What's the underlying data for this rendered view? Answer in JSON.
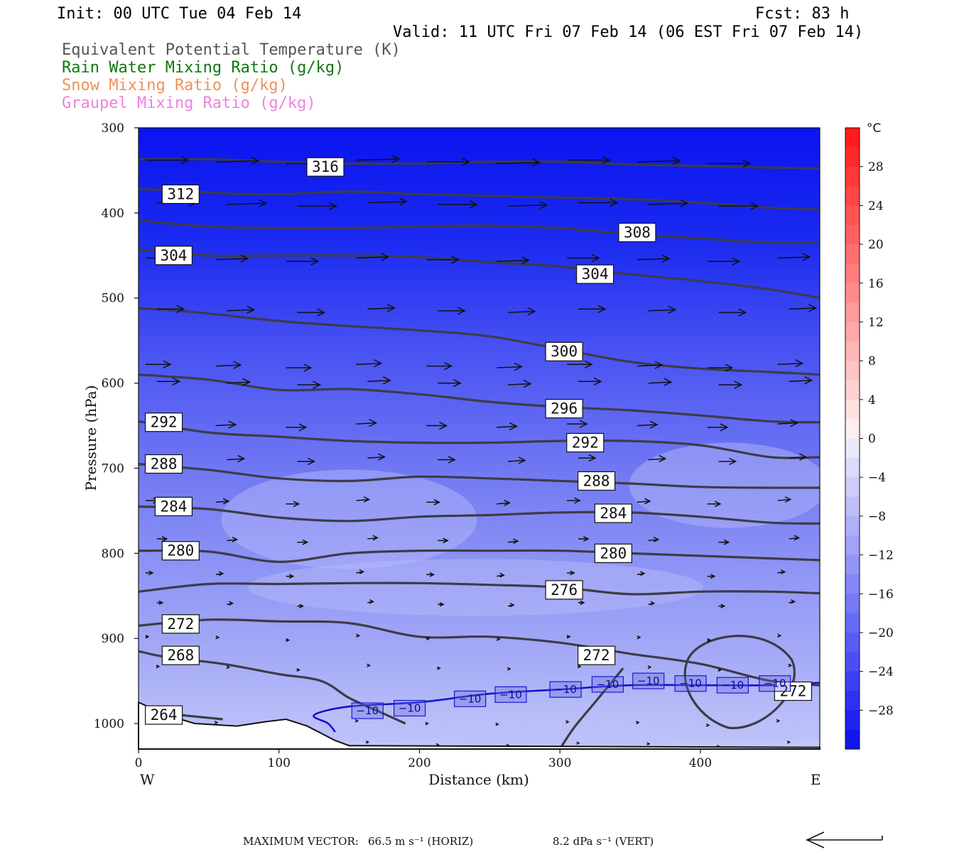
{
  "header": {
    "init": "Init: 00 UTC Tue 04 Feb 14",
    "fcst": "Fcst:   83 h",
    "valid": "Valid: 11 UTC Fri 07 Feb 14 (06 EST Fri 07 Feb 14)"
  },
  "legend_lines": [
    {
      "text": "Equivalent Potential Temperature (K)",
      "color": "#555555"
    },
    {
      "text": "Rain Water Mixing Ratio (g/kg)",
      "color": "#117711"
    },
    {
      "text": "Snow Mixing Ratio (g/kg)",
      "color": "#f0905a"
    },
    {
      "text": "Graupel Mixing Ratio (g/kg)",
      "color": "#f080e0"
    }
  ],
  "colorbar": {
    "unit": "°C",
    "labels": [
      "28",
      "24",
      "20",
      "16",
      "12",
      "8",
      "4",
      "0",
      "−4",
      "−8",
      "−12",
      "−16",
      "−20",
      "−24",
      "−28"
    ]
  },
  "footer": {
    "max_vector_label": "MAXIMUM VECTOR:",
    "horiz": "66.5 m s⁻¹ (HORIZ)",
    "vert": "8.2 dPa s⁻¹ (VERT)"
  },
  "chart_data": {
    "type": "contour",
    "title": "",
    "xlabel": "Distance (km)",
    "ylabel": "Pressure (hPa)",
    "x_ticks": [
      0,
      100,
      200,
      300,
      400
    ],
    "y_ticks": [
      300,
      400,
      500,
      600,
      700,
      800,
      900,
      1000
    ],
    "xlim": [
      0,
      485
    ],
    "ylim_hpa": [
      300,
      1030
    ],
    "y_scale": "linear",
    "x_end_labels": {
      "left": "W",
      "right": "E"
    },
    "theta_e_contours": [
      {
        "level": 316,
        "points": [
          [
            0,
            337
          ],
          [
            50,
            337
          ],
          [
            100,
            340
          ],
          [
            150,
            342
          ],
          [
            200,
            342
          ],
          [
            250,
            340
          ],
          [
            300,
            340
          ],
          [
            350,
            343
          ],
          [
            400,
            345
          ],
          [
            485,
            348
          ]
        ]
      },
      {
        "level": 312,
        "points": [
          [
            0,
            372
          ],
          [
            30,
            374
          ],
          [
            60,
            377
          ],
          [
            100,
            378
          ],
          [
            150,
            375
          ],
          [
            200,
            378
          ],
          [
            250,
            380
          ],
          [
            300,
            382
          ],
          [
            350,
            384
          ],
          [
            400,
            388
          ],
          [
            450,
            394
          ],
          [
            485,
            396
          ]
        ]
      },
      {
        "level": 308,
        "points": [
          [
            0,
            409
          ],
          [
            50,
            416
          ],
          [
            100,
            418
          ],
          [
            150,
            418
          ],
          [
            200,
            416
          ],
          [
            250,
            415
          ],
          [
            300,
            418
          ],
          [
            350,
            425
          ],
          [
            400,
            430
          ],
          [
            450,
            435
          ],
          [
            485,
            435
          ]
        ]
      },
      {
        "level": 304,
        "points": [
          [
            0,
            443
          ],
          [
            50,
            450
          ],
          [
            100,
            450
          ],
          [
            150,
            450
          ],
          [
            200,
            452
          ],
          [
            250,
            458
          ],
          [
            300,
            463
          ],
          [
            350,
            472
          ],
          [
            400,
            480
          ],
          [
            450,
            490
          ],
          [
            485,
            500
          ]
        ]
      },
      {
        "level": 300,
        "points": [
          [
            0,
            512
          ],
          [
            30,
            515
          ],
          [
            60,
            520
          ],
          [
            100,
            527
          ],
          [
            150,
            533
          ],
          [
            200,
            538
          ],
          [
            250,
            545
          ],
          [
            300,
            560
          ],
          [
            350,
            575
          ],
          [
            400,
            583
          ],
          [
            450,
            587
          ],
          [
            485,
            590
          ]
        ]
      },
      {
        "level": 296,
        "points": [
          [
            0,
            590
          ],
          [
            50,
            596
          ],
          [
            100,
            608
          ],
          [
            150,
            607
          ],
          [
            200,
            613
          ],
          [
            250,
            622
          ],
          [
            300,
            628
          ],
          [
            350,
            632
          ],
          [
            400,
            638
          ],
          [
            450,
            645
          ],
          [
            485,
            646
          ]
        ]
      },
      {
        "level": 292,
        "points": [
          [
            0,
            645
          ],
          [
            50,
            658
          ],
          [
            100,
            663
          ],
          [
            150,
            668
          ],
          [
            200,
            670
          ],
          [
            250,
            670
          ],
          [
            300,
            668
          ],
          [
            350,
            668
          ],
          [
            400,
            673
          ],
          [
            450,
            687
          ],
          [
            485,
            687
          ]
        ]
      },
      {
        "level": 288,
        "points": [
          [
            0,
            695
          ],
          [
            50,
            702
          ],
          [
            100,
            712
          ],
          [
            150,
            715
          ],
          [
            200,
            710
          ],
          [
            250,
            712
          ],
          [
            300,
            715
          ],
          [
            350,
            718
          ],
          [
            400,
            722
          ],
          [
            450,
            723
          ],
          [
            485,
            723
          ]
        ]
      },
      {
        "level": 284,
        "points": [
          [
            0,
            745
          ],
          [
            50,
            748
          ],
          [
            100,
            758
          ],
          [
            150,
            762
          ],
          [
            200,
            757
          ],
          [
            250,
            755
          ],
          [
            300,
            752
          ],
          [
            350,
            752
          ],
          [
            400,
            757
          ],
          [
            450,
            764
          ],
          [
            485,
            765
          ]
        ]
      },
      {
        "level": 280,
        "points": [
          [
            0,
            797
          ],
          [
            50,
            798
          ],
          [
            100,
            810
          ],
          [
            150,
            800
          ],
          [
            200,
            797
          ],
          [
            250,
            797
          ],
          [
            300,
            797
          ],
          [
            350,
            800
          ],
          [
            400,
            803
          ],
          [
            450,
            806
          ],
          [
            485,
            808
          ]
        ]
      },
      {
        "level": 276,
        "points": [
          [
            0,
            845
          ],
          [
            50,
            836
          ],
          [
            100,
            836
          ],
          [
            150,
            835
          ],
          [
            200,
            835
          ],
          [
            250,
            837
          ],
          [
            300,
            840
          ],
          [
            350,
            848
          ],
          [
            400,
            845
          ],
          [
            450,
            845
          ],
          [
            485,
            847
          ]
        ]
      },
      {
        "level": 272,
        "points": [
          [
            0,
            885
          ],
          [
            50,
            878
          ],
          [
            100,
            880
          ],
          [
            150,
            882
          ],
          [
            200,
            898
          ],
          [
            250,
            898
          ],
          [
            300,
            905
          ],
          [
            350,
            918
          ],
          [
            400,
            930
          ],
          [
            450,
            950
          ],
          [
            485,
            955
          ]
        ]
      },
      {
        "level": 268,
        "points": [
          [
            0,
            915
          ],
          [
            20,
            922
          ],
          [
            60,
            930
          ],
          [
            100,
            942
          ],
          [
            130,
            950
          ],
          [
            150,
            970
          ],
          [
            170,
            985
          ],
          [
            190,
            1000
          ]
        ]
      },
      {
        "level": 264,
        "points": [
          [
            0,
            985
          ],
          [
            30,
            990
          ],
          [
            60,
            995
          ]
        ]
      }
    ],
    "temperature_contour_minus10": {
      "level": -10,
      "points": [
        [
          140,
          1010
        ],
        [
          135,
          1000
        ],
        [
          125,
          990
        ],
        [
          150,
          980
        ],
        [
          200,
          975
        ],
        [
          250,
          965
        ],
        [
          300,
          960
        ],
        [
          350,
          955
        ],
        [
          400,
          955
        ],
        [
          450,
          955
        ],
        [
          485,
          952
        ]
      ]
    },
    "contour_labels": [
      {
        "text": "316",
        "x": 133,
        "p": 346
      },
      {
        "text": "312",
        "x": 30,
        "p": 378
      },
      {
        "text": "308",
        "x": 355,
        "p": 423
      },
      {
        "text": "304",
        "x": 25,
        "p": 450
      },
      {
        "text": "304",
        "x": 325,
        "p": 472
      },
      {
        "text": "300",
        "x": 303,
        "p": 563
      },
      {
        "text": "296",
        "x": 303,
        "p": 630
      },
      {
        "text": "292",
        "x": 18,
        "p": 646
      },
      {
        "text": "292",
        "x": 318,
        "p": 670
      },
      {
        "text": "288",
        "x": 18,
        "p": 695
      },
      {
        "text": "288",
        "x": 326,
        "p": 715
      },
      {
        "text": "284",
        "x": 25,
        "p": 745
      },
      {
        "text": "284",
        "x": 338,
        "p": 753
      },
      {
        "text": "280",
        "x": 30,
        "p": 797
      },
      {
        "text": "280",
        "x": 338,
        "p": 800
      },
      {
        "text": "276",
        "x": 303,
        "p": 843
      },
      {
        "text": "272",
        "x": 30,
        "p": 883
      },
      {
        "text": "272",
        "x": 326,
        "p": 920
      },
      {
        "text": "272",
        "x": 466,
        "p": 962
      },
      {
        "text": "268",
        "x": 30,
        "p": 920
      },
      {
        "text": "264",
        "x": 18,
        "p": 990
      }
    ],
    "temp_labels": [
      {
        "text": "−10",
        "x": 163,
        "p": 985
      },
      {
        "text": "−10",
        "x": 193,
        "p": 982
      },
      {
        "text": "−10",
        "x": 236,
        "p": 971
      },
      {
        "text": "−10",
        "x": 265,
        "p": 966
      },
      {
        "text": "−10",
        "x": 304,
        "p": 960
      },
      {
        "text": "−10",
        "x": 334,
        "p": 954
      },
      {
        "text": "−10",
        "x": 363,
        "p": 950
      },
      {
        "text": "−10",
        "x": 393,
        "p": 953
      },
      {
        "text": "−10",
        "x": 423,
        "p": 955
      },
      {
        "text": "−10",
        "x": 453,
        "p": 953
      }
    ],
    "vector_max": {
      "horiz": 66.5,
      "horiz_unit": "m s⁻¹",
      "vert": 8.2,
      "vert_unit": "dPa s⁻¹"
    }
  }
}
